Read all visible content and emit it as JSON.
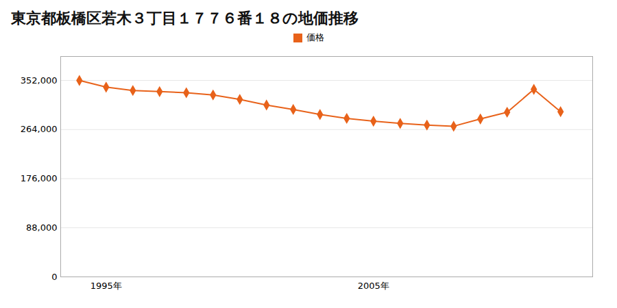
{
  "chart_data": {
    "type": "line",
    "title": "東京都板橋区若木３丁目１７７６番１８の地価推移",
    "x": [
      1994,
      1995,
      1996,
      1997,
      1998,
      1999,
      2000,
      2001,
      2002,
      2003,
      2004,
      2005,
      2006,
      2007,
      2008,
      2009,
      2010,
      2011,
      2012
    ],
    "series": [
      {
        "name": "価格",
        "color": "#e8621a",
        "values": [
          352000,
          340000,
          334000,
          332000,
          330000,
          326000,
          318000,
          308000,
          300000,
          291000,
          284000,
          279000,
          275000,
          272000,
          270000,
          283000,
          295000,
          336000,
          296000
        ]
      }
    ],
    "xlim": [
      1993.3,
      2013.2
    ],
    "xticks": [
      {
        "value": 1995,
        "label": "1995年"
      },
      {
        "value": 2005,
        "label": "2005年"
      }
    ],
    "ylim": [
      0,
      395000
    ],
    "yticks": [
      0,
      {
        "value": 88000,
        "label": "88,000"
      },
      {
        "value": 176000,
        "label": "176,000"
      },
      {
        "value": 264000,
        "label": "264,000"
      },
      {
        "value": 352000,
        "label": "352,000"
      }
    ],
    "grid": true,
    "legend": "top",
    "marker": "diamond"
  }
}
